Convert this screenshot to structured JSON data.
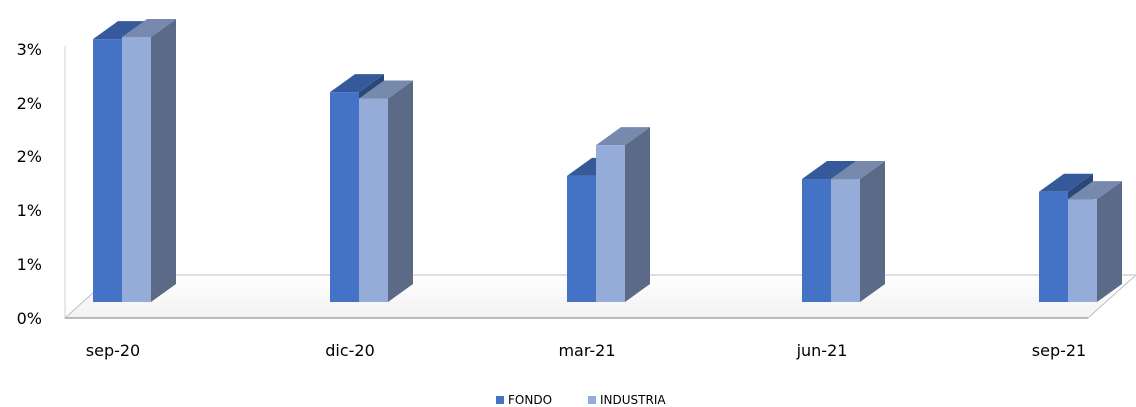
{
  "chart_data": {
    "type": "bar",
    "style": "3d-clustered-column",
    "categories": [
      "sep-20",
      "dic-20",
      "mar-21",
      "jun-21",
      "sep-21"
    ],
    "series": [
      {
        "name": "FONDO",
        "values": [
          2.48,
          1.98,
          1.19,
          1.16,
          1.04
        ],
        "color": "#4472C4"
      },
      {
        "name": "INDUSTRIA",
        "values": [
          2.5,
          1.92,
          1.48,
          1.16,
          0.97
        ],
        "color": "#95ABD8"
      }
    ],
    "yticks": [
      "0%",
      "1%",
      "1%",
      "2%",
      "2%",
      "3%"
    ],
    "ylim": [
      0,
      2.5
    ],
    "legend_position": "bottom",
    "grid": false
  }
}
